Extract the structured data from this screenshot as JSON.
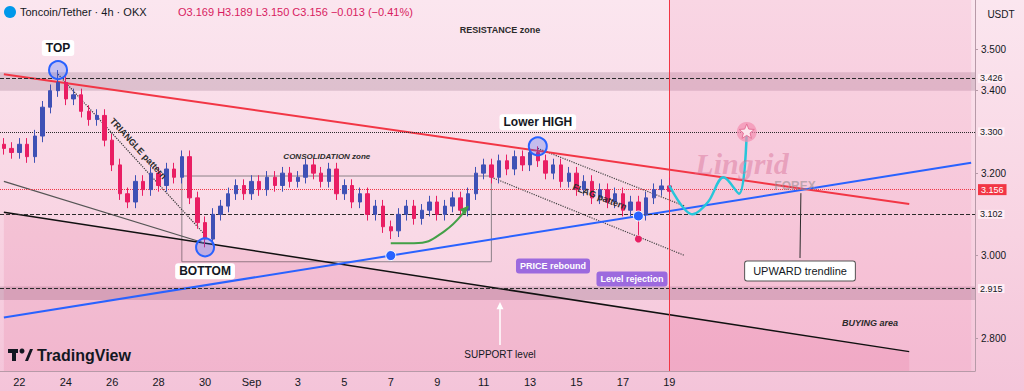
{
  "chart_data": {
    "type": "candlestick",
    "header": "Toncoin/Tether · 4h · OKX",
    "ohlc_text": "O3.169 H3.189 L3.150 C3.156 −0.013 (−0.41%)",
    "y_unit": "USDT",
    "categories": [
      null,
      null,
      "22",
      null,
      null,
      null,
      null,
      null,
      "24",
      null,
      null,
      null,
      null,
      null,
      "26",
      null,
      null,
      null,
      null,
      null,
      "28",
      null,
      null,
      null,
      null,
      null,
      "30",
      null,
      null,
      null,
      null,
      null,
      "Sep",
      null,
      null,
      null,
      null,
      null,
      "3",
      null,
      null,
      null,
      null,
      null,
      "5",
      null,
      null,
      null,
      null,
      null,
      "7",
      null,
      null,
      null,
      null,
      null,
      "9",
      null,
      null,
      null,
      null,
      null,
      "11",
      null,
      null,
      null,
      null,
      null,
      "13",
      null,
      null,
      null,
      null,
      null,
      "15",
      null,
      null,
      null,
      null,
      null,
      "17",
      null,
      null,
      null,
      null,
      null,
      "19",
      null,
      null,
      null,
      null,
      null,
      null,
      null,
      null,
      null,
      null,
      null,
      null,
      null,
      null,
      null,
      null,
      null,
      null,
      null,
      null,
      null,
      null,
      null,
      null,
      null,
      null,
      null,
      null,
      null,
      null,
      null,
      null,
      null,
      null,
      null,
      null,
      null,
      null,
      null
    ],
    "open": [
      3.27,
      3.26,
      3.25,
      3.27,
      3.24,
      3.29,
      3.36,
      3.4,
      3.42,
      3.38,
      3.39,
      3.35,
      3.33,
      3.34,
      3.28,
      3.22,
      3.15,
      3.13,
      3.18,
      3.16,
      3.2,
      3.17,
      3.21,
      3.19,
      3.24,
      3.14,
      3.08,
      3.04,
      3.1,
      3.12,
      3.15,
      3.17,
      3.15,
      3.18,
      3.16,
      3.19,
      3.17,
      3.2,
      3.18,
      3.19,
      3.22,
      3.2,
      3.18,
      3.21,
      3.15,
      3.17,
      3.13,
      3.15,
      3.1,
      3.12,
      3.07,
      3.06,
      3.1,
      3.12,
      3.09,
      3.11,
      3.13,
      3.1,
      3.12,
      3.14,
      3.11,
      3.15,
      3.2,
      3.22,
      3.19,
      3.23,
      3.21,
      3.24,
      3.22,
      3.25,
      3.23,
      3.2,
      3.22,
      3.18,
      3.2,
      3.16,
      3.18,
      3.14,
      3.16,
      3.13,
      3.15,
      3.11,
      3.13,
      3.1,
      3.14,
      3.16,
      3.169,
      null,
      null,
      null,
      null,
      null,
      null,
      null,
      null,
      null,
      null,
      null,
      null,
      null,
      null,
      null,
      null,
      null,
      null,
      null,
      null,
      null,
      null,
      null,
      null,
      null,
      null,
      null,
      null,
      null,
      null,
      null,
      null,
      null,
      null,
      null,
      null,
      null,
      null,
      null
    ],
    "high": [
      3.285,
      3.275,
      3.285,
      3.285,
      3.305,
      3.375,
      3.415,
      3.45,
      3.435,
      3.405,
      3.405,
      3.365,
      3.355,
      3.355,
      3.295,
      3.235,
      3.165,
      3.195,
      3.195,
      3.215,
      3.215,
      3.225,
      3.225,
      3.255,
      3.255,
      3.155,
      3.095,
      3.115,
      3.135,
      3.165,
      3.185,
      3.185,
      3.195,
      3.195,
      3.205,
      3.205,
      3.215,
      3.215,
      3.205,
      3.235,
      3.235,
      3.215,
      3.225,
      3.225,
      3.185,
      3.185,
      3.165,
      3.165,
      3.135,
      3.135,
      3.085,
      3.115,
      3.135,
      3.135,
      3.125,
      3.145,
      3.145,
      3.135,
      3.155,
      3.155,
      3.165,
      3.215,
      3.235,
      3.235,
      3.245,
      3.245,
      3.255,
      3.255,
      3.26,
      3.265,
      3.245,
      3.235,
      3.235,
      3.215,
      3.215,
      3.195,
      3.195,
      3.175,
      3.175,
      3.165,
      3.165,
      3.145,
      3.145,
      3.155,
      3.175,
      3.185,
      3.189,
      null,
      null,
      null,
      null,
      null,
      null,
      null,
      null,
      null,
      null,
      null,
      null,
      null,
      null,
      null,
      null,
      null,
      null,
      null,
      null,
      null,
      null,
      null,
      null,
      null,
      null,
      null,
      null,
      null,
      null,
      null,
      null,
      null,
      null,
      null,
      null,
      null,
      null,
      null
    ],
    "low": [
      3.245,
      3.235,
      3.235,
      3.225,
      3.225,
      3.275,
      3.345,
      3.385,
      3.365,
      3.365,
      3.335,
      3.315,
      3.315,
      3.265,
      3.205,
      3.135,
      3.115,
      3.115,
      3.145,
      3.145,
      3.155,
      3.155,
      3.175,
      3.175,
      3.125,
      3.065,
      3.02,
      3.025,
      3.085,
      3.105,
      3.135,
      3.135,
      3.135,
      3.145,
      3.145,
      3.155,
      3.155,
      3.165,
      3.165,
      3.175,
      3.185,
      3.165,
      3.165,
      3.135,
      3.135,
      3.115,
      3.115,
      3.085,
      3.085,
      3.055,
      3.04,
      3.045,
      3.085,
      3.075,
      3.075,
      3.095,
      3.085,
      3.085,
      3.105,
      3.095,
      3.095,
      3.135,
      3.185,
      3.175,
      3.175,
      3.195,
      3.195,
      3.205,
      3.205,
      3.215,
      3.185,
      3.185,
      3.165,
      3.165,
      3.145,
      3.145,
      3.125,
      3.125,
      3.115,
      3.115,
      3.095,
      3.095,
      3.05,
      3.085,
      3.125,
      3.145,
      3.15,
      null,
      null,
      null,
      null,
      null,
      null,
      null,
      null,
      null,
      null,
      null,
      null,
      null,
      null,
      null,
      null,
      null,
      null,
      null,
      null,
      null,
      null,
      null,
      null,
      null,
      null,
      null,
      null,
      null,
      null,
      null,
      null,
      null,
      null,
      null,
      null,
      null,
      null,
      null
    ],
    "close": [
      3.26,
      3.25,
      3.27,
      3.24,
      3.29,
      3.36,
      3.4,
      3.42,
      3.38,
      3.39,
      3.35,
      3.33,
      3.34,
      3.28,
      3.22,
      3.15,
      3.13,
      3.18,
      3.16,
      3.2,
      3.17,
      3.21,
      3.19,
      3.24,
      3.14,
      3.08,
      3.04,
      3.1,
      3.12,
      3.15,
      3.17,
      3.15,
      3.18,
      3.16,
      3.19,
      3.17,
      3.2,
      3.18,
      3.19,
      3.22,
      3.2,
      3.18,
      3.21,
      3.15,
      3.17,
      3.13,
      3.15,
      3.1,
      3.12,
      3.07,
      3.06,
      3.1,
      3.12,
      3.09,
      3.11,
      3.13,
      3.1,
      3.12,
      3.14,
      3.11,
      3.15,
      3.2,
      3.22,
      3.19,
      3.23,
      3.21,
      3.24,
      3.22,
      3.25,
      3.23,
      3.2,
      3.22,
      3.18,
      3.2,
      3.16,
      3.18,
      3.14,
      3.16,
      3.13,
      3.15,
      3.11,
      3.13,
      3.1,
      3.14,
      3.16,
      3.169,
      3.156,
      null,
      null,
      null,
      null,
      null,
      null,
      null,
      null,
      null,
      null,
      null,
      null,
      null,
      null,
      null,
      null,
      null,
      null,
      null,
      null,
      null,
      null,
      null,
      null,
      null,
      null,
      null,
      null,
      null,
      null,
      null,
      null,
      null,
      null,
      null,
      null,
      null,
      null,
      null
    ],
    "ylim": [
      2.72,
      3.62
    ],
    "yticks": [
      {
        "value": 2.8,
        "label": "2.800"
      },
      {
        "value": 3.0,
        "label": "3.000"
      },
      {
        "value": 3.2,
        "label": "3.200"
      },
      {
        "value": 3.4,
        "label": "3.400"
      },
      {
        "value": 3.5,
        "label": "3.500"
      }
    ],
    "grid": false,
    "levels": [
      {
        "value": 3.426,
        "label": "3.426",
        "line_style": "dashed"
      },
      {
        "value": 3.3,
        "label": "3.300",
        "line_style": "dotted"
      },
      {
        "value": 3.102,
        "label": "3.102",
        "line_style": "dashed"
      },
      {
        "value": 2.915,
        "label": "2.915",
        "line_style": "dashed"
      }
    ],
    "last_price": {
      "value": 3.156,
      "label": "3.156"
    },
    "resistance_band": [
      3.4,
      3.445
    ],
    "support_band": [
      2.892,
      2.925
    ],
    "consolidation_box": {
      "x": [
        23,
        63
      ],
      "y": [
        2.985,
        3.193
      ]
    },
    "trendlines": {
      "resistance": {
        "x": [
          0,
          117
        ],
        "y": [
          3.44,
          3.125
        ],
        "color": "#f23645",
        "line_style": "solid"
      },
      "upward": {
        "x": [
          0,
          125
        ],
        "y": [
          2.85,
          3.225
        ],
        "color": "#2962ff",
        "line_style": "solid"
      },
      "channel_low": {
        "x": [
          0,
          117
        ],
        "y": [
          3.105,
          2.767
        ],
        "color": "#111111",
        "line_style": "solid"
      },
      "triangle_upper": {
        "x": [
          7,
          26
        ],
        "y": [
          3.44,
          3.05
        ],
        "color": "#333333",
        "line_style": "dotted"
      },
      "triangle_lower": {
        "x": [
          0,
          26
        ],
        "y": [
          3.18,
          3.03
        ],
        "color": "#555555",
        "line_style": "solid"
      },
      "flag_upper": {
        "x": [
          69,
          88
        ],
        "y": [
          3.26,
          3.12
        ],
        "color": "#444444",
        "line_style": "dotted"
      },
      "flag_lower": {
        "x": [
          63,
          88
        ],
        "y": [
          3.19,
          3.0
        ],
        "color": "#444444",
        "line_style": "dotted"
      }
    },
    "projection": {
      "x": [
        86,
        89,
        91,
        93,
        95,
        96
      ],
      "y": [
        3.17,
        3.1,
        3.13,
        3.19,
        3.15,
        3.3
      ],
      "color": "#26c6da"
    },
    "rebound_arrow": {
      "x": [
        50,
        53,
        57,
        60
      ],
      "y": [
        3.03,
        3.03,
        3.06,
        3.12
      ],
      "color": "#43a047"
    },
    "annotations": {
      "resistance_zone": "RESISTANCE zone",
      "top": "TOP",
      "triangle": "TRIANGLE pattern",
      "consolidation": "CONSOLIDATION zone",
      "bottom": "BOTTOM",
      "lower_high": "Lower HIGH",
      "flag": "FLAG pattern",
      "price_rebound": "PRICE rebound",
      "level_rejection": "Level rejection",
      "upward_trendline": "UPWARD trendline",
      "support_level": "SUPPORT level",
      "buying_area": "BUYING area"
    },
    "watermark": [
      "Lingrid",
      "FOREX"
    ],
    "logo": "TradingView"
  }
}
